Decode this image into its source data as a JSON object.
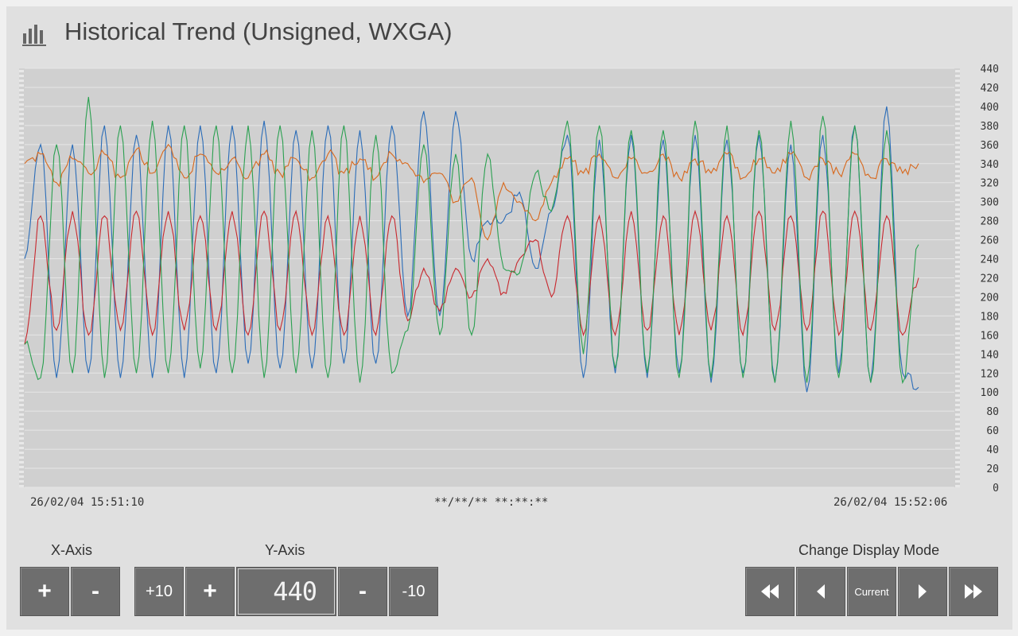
{
  "title": "Historical Trend (Unsigned, WXGA)",
  "title_icon": "bar-chart-icon",
  "time_labels": {
    "start": "26/02/04 15:51:10",
    "cursor": "**/**/** **:**:**",
    "end": "26/02/04 15:52:06"
  },
  "controls": {
    "x_axis": {
      "label": "X-Axis",
      "plus": "+",
      "minus": "-"
    },
    "y_axis": {
      "label": "Y-Axis",
      "plus10": "+10",
      "plus": "+",
      "value": "440",
      "minus": "-",
      "minus10": "-10"
    },
    "display_mode": {
      "label": "Change Display Mode",
      "buttons": [
        {
          "name": "fast-rewind",
          "icon": "double-left-arrow-icon"
        },
        {
          "name": "step-back",
          "icon": "left-arrow-icon"
        },
        {
          "name": "current",
          "label": "Current"
        },
        {
          "name": "step-forward",
          "icon": "right-arrow-icon"
        },
        {
          "name": "fast-forward",
          "icon": "double-right-arrow-icon"
        }
      ]
    }
  },
  "colors": {
    "plot_bg": "#d0d0d0",
    "grid": "#e6e6e6",
    "series_blue": "#2a6cb8",
    "series_orange": "#d8681c",
    "series_red": "#c8282e",
    "series_green": "#2aa050",
    "button": "#6e6e6e"
  },
  "chart_data": {
    "type": "line",
    "ylim": [
      0,
      440
    ],
    "y_ticks": [
      "0",
      "20",
      "40",
      "60",
      "80",
      "100",
      "120",
      "140",
      "160",
      "180",
      "200",
      "220",
      "240",
      "260",
      "280",
      "300",
      "320",
      "340",
      "360",
      "380",
      "400",
      "420",
      "440"
    ],
    "x_start": "26/02/04 15:51:10",
    "x_end": "26/02/04 15:52:06",
    "x_unit": "s",
    "series": [
      {
        "color": "#2a6cb8",
        "x": [
          0,
          1,
          2,
          3,
          4,
          5,
          6,
          7,
          8,
          9,
          10,
          11,
          12,
          13,
          14,
          15,
          16,
          17,
          18,
          19,
          20,
          21,
          22,
          23,
          24,
          25,
          26,
          27,
          28,
          29,
          30,
          31,
          32,
          33,
          34,
          35,
          36,
          37,
          38,
          39,
          40,
          41,
          42,
          43,
          44,
          45,
          46,
          47,
          48,
          49,
          50,
          51,
          52,
          53,
          54,
          55,
          56
        ],
        "y": [
          240,
          360,
          115,
          360,
          120,
          380,
          115,
          370,
          115,
          380,
          115,
          380,
          120,
          380,
          130,
          385,
          125,
          375,
          125,
          380,
          130,
          375,
          130,
          380,
          180,
          395,
          180,
          395,
          240,
          280,
          280,
          310,
          230,
          290,
          370,
          115,
          365,
          120,
          370,
          115,
          365,
          120,
          370,
          110,
          365,
          120,
          370,
          110,
          360,
          100,
          370,
          120,
          380,
          110,
          400,
          120,
          105
        ]
      },
      {
        "color": "#d8681c",
        "x": [
          0,
          1,
          2,
          3,
          4,
          5,
          6,
          7,
          8,
          9,
          10,
          11,
          12,
          13,
          14,
          15,
          16,
          17,
          18,
          19,
          20,
          21,
          22,
          23,
          24,
          25,
          26,
          27,
          28,
          29,
          30,
          31,
          32,
          33,
          34,
          35,
          36,
          37,
          38,
          39,
          40,
          41,
          42,
          43,
          44,
          45,
          46,
          47,
          48,
          49,
          50,
          51,
          52,
          53,
          54,
          55,
          56
        ],
        "y": [
          340,
          350,
          320,
          345,
          330,
          350,
          325,
          355,
          330,
          360,
          325,
          350,
          330,
          345,
          325,
          350,
          330,
          345,
          325,
          350,
          330,
          345,
          325,
          350,
          340,
          320,
          330,
          300,
          325,
          260,
          320,
          300,
          280,
          320,
          345,
          330,
          350,
          325,
          345,
          330,
          350,
          325,
          345,
          330,
          350,
          325,
          345,
          330,
          350,
          325,
          345,
          330,
          350,
          325,
          345,
          330,
          340
        ]
      },
      {
        "color": "#c8282e",
        "x": [
          0,
          1,
          2,
          3,
          4,
          5,
          6,
          7,
          8,
          9,
          10,
          11,
          12,
          13,
          14,
          15,
          16,
          17,
          18,
          19,
          20,
          21,
          22,
          23,
          24,
          25,
          26,
          27,
          28,
          29,
          30,
          31,
          32,
          33,
          34,
          35,
          36,
          37,
          38,
          39,
          40,
          41,
          42,
          43,
          44,
          45,
          46,
          47,
          48,
          49,
          50,
          51,
          52,
          53,
          54,
          55,
          56
        ],
        "y": [
          150,
          285,
          165,
          290,
          160,
          285,
          165,
          290,
          160,
          290,
          165,
          285,
          165,
          290,
          160,
          290,
          165,
          290,
          160,
          285,
          160,
          285,
          160,
          285,
          175,
          230,
          185,
          230,
          200,
          240,
          205,
          240,
          260,
          200,
          285,
          160,
          285,
          160,
          290,
          165,
          285,
          160,
          290,
          165,
          285,
          160,
          290,
          165,
          285,
          165,
          290,
          160,
          290,
          165,
          285,
          160,
          220
        ]
      },
      {
        "color": "#2aa050",
        "x": [
          0,
          1,
          2,
          3,
          4,
          5,
          6,
          7,
          8,
          9,
          10,
          11,
          12,
          13,
          14,
          15,
          16,
          17,
          18,
          19,
          20,
          21,
          22,
          23,
          24,
          25,
          26,
          27,
          28,
          29,
          30,
          31,
          32,
          33,
          34,
          35,
          36,
          37,
          38,
          39,
          40,
          41,
          42,
          43,
          44,
          45,
          46,
          47,
          48,
          49,
          50,
          51,
          52,
          53,
          54,
          55,
          56
        ],
        "y": [
          150,
          115,
          360,
          120,
          410,
          115,
          380,
          120,
          385,
          120,
          380,
          125,
          380,
          120,
          380,
          115,
          380,
          120,
          375,
          115,
          380,
          110,
          370,
          120,
          165,
          360,
          160,
          350,
          160,
          350,
          230,
          225,
          330,
          290,
          385,
          140,
          380,
          125,
          375,
          120,
          375,
          115,
          385,
          115,
          380,
          115,
          375,
          110,
          385,
          110,
          390,
          115,
          380,
          110,
          375,
          110,
          255
        ]
      }
    ]
  }
}
